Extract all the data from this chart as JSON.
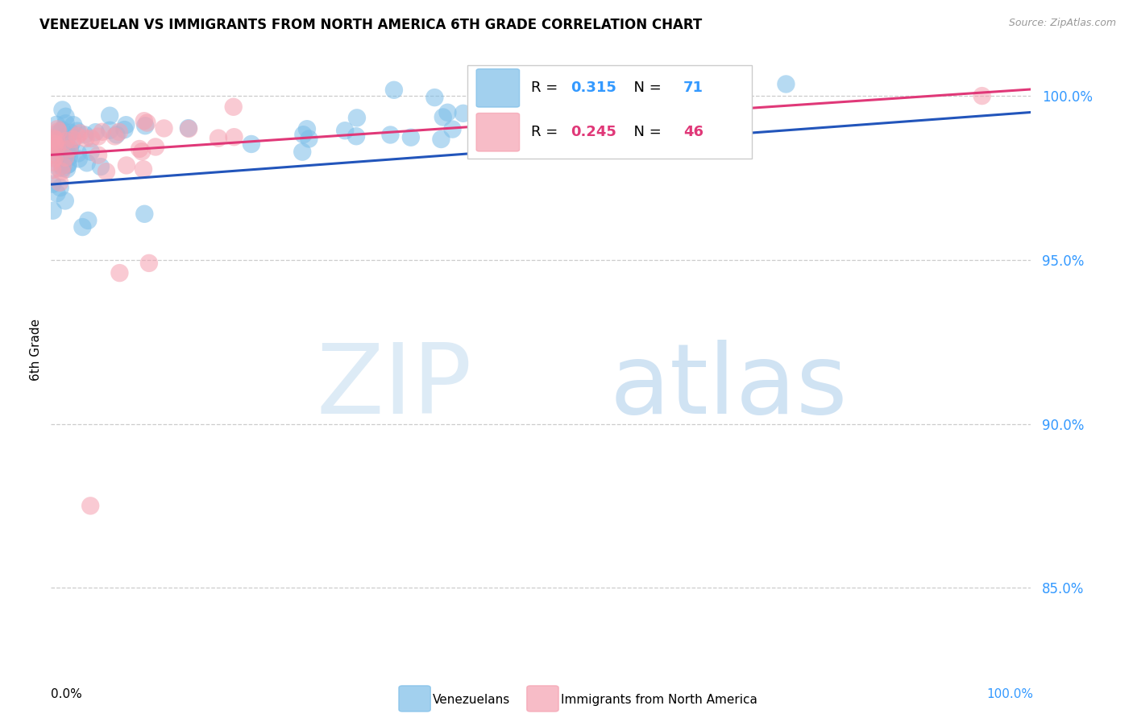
{
  "title": "VENEZUELAN VS IMMIGRANTS FROM NORTH AMERICA 6TH GRADE CORRELATION CHART",
  "source": "Source: ZipAtlas.com",
  "ylabel": "6th Grade",
  "xlim": [
    0.0,
    100.0
  ],
  "ylim": [
    83.0,
    101.5
  ],
  "y_ticks": [
    85.0,
    90.0,
    95.0,
    100.0
  ],
  "blue_R": 0.315,
  "blue_N": 71,
  "pink_R": 0.245,
  "pink_N": 46,
  "blue_color": "#7bbde8",
  "pink_color": "#f5a0b0",
  "blue_line_color": "#2255bb",
  "pink_line_color": "#e03878",
  "legend_blue_label": "Venezuelans",
  "legend_pink_label": "Immigrants from North America",
  "blue_trend_x0": 0,
  "blue_trend_x1": 100,
  "blue_trend_y0": 97.3,
  "blue_trend_y1": 99.5,
  "pink_trend_x0": 0,
  "pink_trend_x1": 100,
  "pink_trend_y0": 98.2,
  "pink_trend_y1": 100.2
}
